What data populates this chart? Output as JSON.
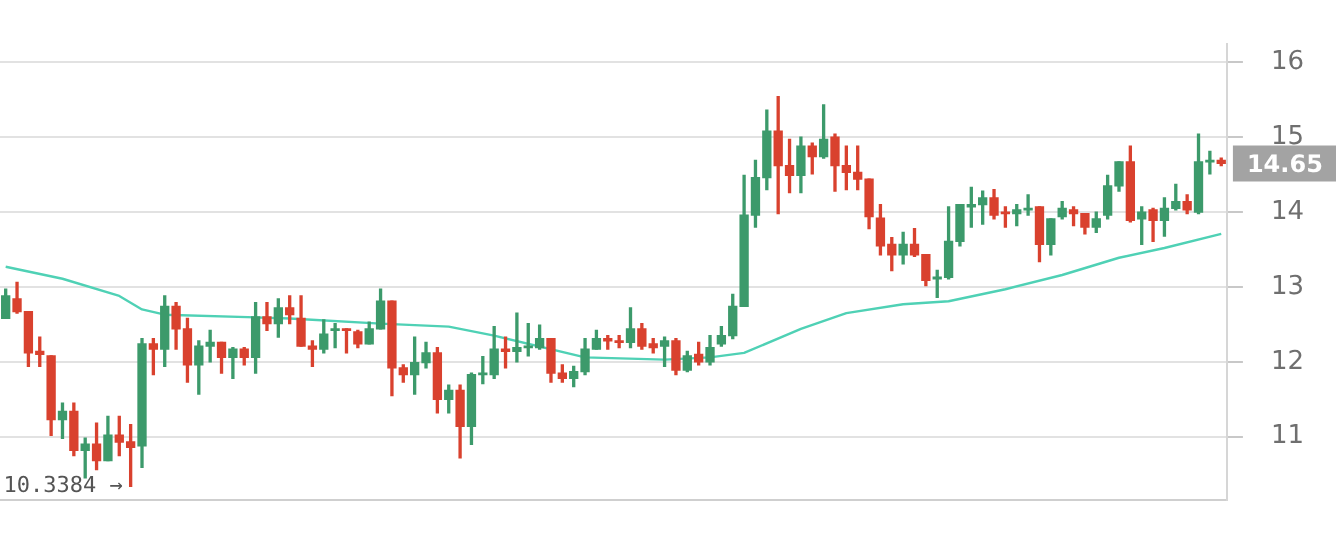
{
  "chart_data": {
    "type": "candlestick",
    "categories": [
      null,
      null,
      null,
      null,
      null,
      null,
      null,
      null,
      null,
      null,
      null,
      null,
      null,
      null,
      null,
      null,
      null,
      null,
      null,
      null,
      null,
      null,
      null,
      null,
      null,
      null,
      null,
      null,
      null,
      null,
      null,
      null,
      null,
      null,
      null,
      null,
      null,
      null,
      null,
      null,
      null,
      null,
      null,
      null,
      null,
      null,
      null,
      null,
      null,
      null,
      null,
      null,
      null,
      null,
      null,
      null,
      null,
      null,
      null,
      null,
      null,
      null,
      null,
      null,
      null,
      null,
      null,
      null,
      null,
      null,
      null,
      null,
      null,
      null,
      null,
      null,
      null,
      null,
      null,
      null,
      null,
      null,
      null,
      null,
      null,
      null,
      null,
      null,
      null,
      null,
      null,
      null,
      null,
      null,
      null,
      null,
      null,
      null,
      null,
      null,
      null,
      null,
      null,
      null,
      null,
      null,
      null,
      null
    ],
    "ohlc": [
      [
        12.58,
        12.97,
        12.58,
        12.88
      ],
      [
        12.84,
        13.06,
        12.65,
        12.67
      ],
      [
        12.67,
        12.67,
        11.94,
        12.12
      ],
      [
        12.14,
        12.33,
        11.94,
        12.1
      ],
      [
        12.08,
        12.08,
        11.02,
        11.23
      ],
      [
        11.23,
        11.45,
        10.98,
        11.34
      ],
      [
        11.34,
        11.45,
        10.75,
        10.82
      ],
      [
        10.82,
        10.98,
        10.45,
        10.9
      ],
      [
        10.9,
        11.18,
        10.56,
        10.68
      ],
      [
        10.68,
        11.27,
        10.68,
        11.02
      ],
      [
        11.02,
        11.27,
        10.75,
        10.93
      ],
      [
        10.93,
        11.16,
        10.3384,
        10.86
      ],
      [
        10.88,
        12.31,
        10.59,
        12.24
      ],
      [
        12.24,
        12.31,
        11.83,
        12.17
      ],
      [
        12.17,
        12.88,
        11.94,
        12.74
      ],
      [
        12.74,
        12.79,
        12.17,
        12.44
      ],
      [
        12.44,
        12.58,
        11.73,
        11.96
      ],
      [
        11.96,
        12.28,
        11.57,
        12.21
      ],
      [
        12.21,
        12.42,
        12.0,
        12.26
      ],
      [
        12.26,
        12.26,
        11.85,
        12.06
      ],
      [
        12.06,
        12.19,
        11.78,
        12.17
      ],
      [
        12.17,
        12.19,
        11.96,
        12.06
      ],
      [
        12.06,
        12.79,
        11.85,
        12.6
      ],
      [
        12.6,
        12.79,
        12.42,
        12.51
      ],
      [
        12.51,
        12.84,
        12.33,
        12.72
      ],
      [
        12.72,
        12.88,
        12.51,
        12.63
      ],
      [
        12.58,
        12.88,
        12.21,
        12.21
      ],
      [
        12.21,
        12.28,
        11.94,
        12.17
      ],
      [
        12.17,
        12.56,
        12.12,
        12.37
      ],
      [
        12.42,
        12.51,
        12.19,
        12.44
      ],
      [
        12.44,
        12.44,
        12.12,
        12.42
      ],
      [
        12.4,
        12.42,
        12.19,
        12.24
      ],
      [
        12.24,
        12.53,
        12.24,
        12.44
      ],
      [
        12.44,
        12.97,
        12.44,
        12.81
      ],
      [
        12.81,
        12.81,
        11.55,
        11.92
      ],
      [
        11.92,
        11.96,
        11.73,
        11.83
      ],
      [
        11.83,
        12.33,
        11.57,
        11.99
      ],
      [
        11.99,
        12.26,
        11.92,
        12.12
      ],
      [
        12.12,
        12.19,
        11.32,
        11.5
      ],
      [
        11.5,
        11.69,
        11.32,
        11.62
      ],
      [
        11.62,
        11.69,
        10.72,
        11.14
      ],
      [
        11.14,
        11.85,
        10.9,
        11.83
      ],
      [
        11.83,
        12.07,
        11.71,
        11.85
      ],
      [
        11.83,
        12.47,
        11.78,
        12.17
      ],
      [
        12.17,
        12.33,
        11.92,
        12.14
      ],
      [
        12.14,
        12.65,
        12.0,
        12.19
      ],
      [
        12.19,
        12.51,
        12.08,
        12.21
      ],
      [
        12.19,
        12.49,
        12.17,
        12.31
      ],
      [
        12.31,
        12.31,
        11.73,
        11.85
      ],
      [
        11.85,
        11.96,
        11.73,
        11.78
      ],
      [
        11.78,
        11.94,
        11.67,
        11.87
      ],
      [
        11.87,
        12.31,
        11.83,
        12.17
      ],
      [
        12.17,
        12.42,
        12.17,
        12.31
      ],
      [
        12.31,
        12.35,
        12.17,
        12.28
      ],
      [
        12.28,
        12.35,
        12.19,
        12.26
      ],
      [
        12.26,
        12.72,
        12.19,
        12.44
      ],
      [
        12.44,
        12.51,
        12.17,
        12.21
      ],
      [
        12.24,
        12.31,
        12.12,
        12.19
      ],
      [
        12.21,
        12.33,
        11.94,
        12.28
      ],
      [
        12.28,
        12.31,
        11.83,
        11.89
      ],
      [
        11.89,
        12.14,
        11.87,
        12.08
      ],
      [
        12.1,
        12.26,
        11.96,
        12.0
      ],
      [
        12.0,
        12.35,
        11.96,
        12.19
      ],
      [
        12.24,
        12.47,
        12.21,
        12.35
      ],
      [
        12.35,
        12.9,
        12.31,
        12.74
      ],
      [
        12.74,
        14.49,
        12.74,
        13.96
      ],
      [
        13.96,
        14.69,
        13.8,
        14.46
      ],
      [
        14.46,
        15.36,
        14.3,
        15.08
      ],
      [
        15.08,
        15.54,
        13.98,
        14.62
      ],
      [
        14.62,
        14.97,
        14.26,
        14.49
      ],
      [
        14.49,
        15.0,
        14.26,
        14.88
      ],
      [
        14.88,
        14.92,
        14.51,
        14.74
      ],
      [
        14.74,
        15.43,
        14.72,
        14.97
      ],
      [
        15.0,
        15.04,
        14.28,
        14.62
      ],
      [
        14.62,
        14.88,
        14.3,
        14.53
      ],
      [
        14.53,
        14.88,
        14.3,
        14.44
      ],
      [
        14.44,
        14.44,
        13.78,
        13.94
      ],
      [
        13.92,
        14.1,
        13.43,
        13.55
      ],
      [
        13.57,
        13.66,
        13.22,
        13.43
      ],
      [
        13.43,
        13.73,
        13.31,
        13.57
      ],
      [
        13.57,
        13.78,
        13.41,
        13.43
      ],
      [
        13.43,
        13.43,
        13.02,
        13.09
      ],
      [
        13.11,
        13.22,
        12.86,
        13.13
      ],
      [
        13.13,
        14.07,
        13.11,
        13.61
      ],
      [
        13.61,
        14.1,
        13.55,
        14.1
      ],
      [
        14.07,
        14.33,
        13.8,
        14.1
      ],
      [
        14.1,
        14.28,
        13.84,
        14.19
      ],
      [
        14.19,
        14.3,
        13.91,
        13.96
      ],
      [
        14.0,
        14.07,
        13.8,
        13.98
      ],
      [
        13.98,
        14.1,
        13.82,
        14.03
      ],
      [
        14.03,
        14.23,
        13.96,
        14.05
      ],
      [
        14.07,
        14.07,
        13.34,
        13.57
      ],
      [
        13.57,
        13.91,
        13.43,
        13.91
      ],
      [
        13.94,
        14.14,
        13.91,
        14.05
      ],
      [
        14.03,
        14.07,
        13.82,
        13.98
      ],
      [
        13.98,
        13.98,
        13.71,
        13.8
      ],
      [
        13.8,
        14.0,
        13.73,
        13.91
      ],
      [
        13.96,
        14.49,
        13.91,
        14.35
      ],
      [
        14.35,
        14.67,
        14.28,
        14.67
      ],
      [
        14.67,
        14.88,
        13.87,
        13.89
      ],
      [
        13.91,
        14.07,
        13.57,
        14.0
      ],
      [
        14.03,
        14.05,
        13.61,
        13.89
      ],
      [
        13.89,
        14.19,
        13.68,
        14.05
      ],
      [
        14.05,
        14.37,
        14.03,
        14.14
      ],
      [
        14.14,
        14.23,
        13.98,
        14.03
      ],
      [
        14.0,
        15.04,
        13.98,
        14.67
      ],
      [
        14.67,
        14.81,
        14.51,
        14.69
      ],
      [
        14.69,
        14.72,
        14.62,
        14.65
      ]
    ],
    "colors": [
      "#3c9a6b",
      "#d9412e",
      "#d9412e",
      "#d9412e",
      "#d9412e",
      "#3c9a6b",
      "#d9412e",
      "#3c9a6b",
      "#d9412e",
      "#3c9a6b",
      "#d9412e",
      "#d9412e",
      "#3c9a6b",
      "#d9412e",
      "#3c9a6b",
      "#d9412e",
      "#d9412e",
      "#3c9a6b",
      "#3c9a6b",
      "#d9412e",
      "#3c9a6b",
      "#d9412e",
      "#3c9a6b",
      "#d9412e",
      "#3c9a6b",
      "#d9412e",
      "#d9412e",
      "#d9412e",
      "#3c9a6b",
      "#3c9a6b",
      "#d9412e",
      "#d9412e",
      "#3c9a6b",
      "#3c9a6b",
      "#d9412e",
      "#d9412e",
      "#3c9a6b",
      "#3c9a6b",
      "#d9412e",
      "#3c9a6b",
      "#d9412e",
      "#3c9a6b",
      "#3c9a6b",
      "#3c9a6b",
      "#d9412e",
      "#3c9a6b",
      "#3c9a6b",
      "#3c9a6b",
      "#d9412e",
      "#d9412e",
      "#3c9a6b",
      "#3c9a6b",
      "#3c9a6b",
      "#d9412e",
      "#d9412e",
      "#3c9a6b",
      "#d9412e",
      "#d9412e",
      "#3c9a6b",
      "#d9412e",
      "#3c9a6b",
      "#d9412e",
      "#3c9a6b",
      "#3c9a6b",
      "#3c9a6b",
      "#3c9a6b",
      "#3c9a6b",
      "#3c9a6b",
      "#d9412e",
      "#d9412e",
      "#3c9a6b",
      "#d9412e",
      "#3c9a6b",
      "#d9412e",
      "#d9412e",
      "#d9412e",
      "#d9412e",
      "#d9412e",
      "#d9412e",
      "#3c9a6b",
      "#d9412e",
      "#d9412e",
      "#3c9a6b",
      "#3c9a6b",
      "#3c9a6b",
      "#3c9a6b",
      "#3c9a6b",
      "#d9412e",
      "#d9412e",
      "#3c9a6b",
      "#3c9a6b",
      "#d9412e",
      "#3c9a6b",
      "#3c9a6b",
      "#d9412e",
      "#d9412e",
      "#3c9a6b",
      "#3c9a6b",
      "#3c9a6b",
      "#d9412e",
      "#3c9a6b",
      "#d9412e",
      "#3c9a6b",
      "#3c9a6b",
      "#d9412e",
      "#3c9a6b",
      "#3c9a6b",
      "#d9412e"
    ],
    "series": [
      {
        "type": "line",
        "color": "#4fd1b5",
        "values": [
          13.27,
          null,
          null,
          null,
          null,
          13.11,
          null,
          null,
          null,
          null,
          12.88,
          null,
          12.7,
          null,
          12.63,
          null,
          null,
          null,
          null,
          null,
          null,
          null,
          null,
          null,
          null,
          12.58,
          null,
          null,
          null,
          null,
          null,
          null,
          null,
          12.51,
          null,
          null,
          null,
          null,
          null,
          12.47,
          null,
          null,
          null,
          12.35,
          null,
          null,
          null,
          null,
          null,
          null,
          null,
          12.06,
          null,
          null,
          null,
          null,
          null,
          null,
          12.03,
          null,
          null,
          null,
          12.06,
          null,
          null,
          12.12,
          null,
          null,
          null,
          null,
          12.44,
          null,
          null,
          null,
          12.65,
          null,
          null,
          null,
          null,
          12.77,
          null,
          null,
          null,
          12.81,
          null,
          null,
          null,
          null,
          12.97,
          null,
          null,
          null,
          null,
          13.16,
          null,
          null,
          null,
          null,
          13.39,
          null,
          null,
          null,
          13.52,
          null,
          null,
          null,
          null,
          13.71
        ]
      }
    ],
    "ylim": [
      10.15,
      16.25
    ],
    "yticks": [
      11,
      12,
      13,
      14,
      15,
      16
    ],
    "grid": "y",
    "tick_labels": "y",
    "annotations": [
      "10.3384 →",
      "14.65"
    ]
  }
}
